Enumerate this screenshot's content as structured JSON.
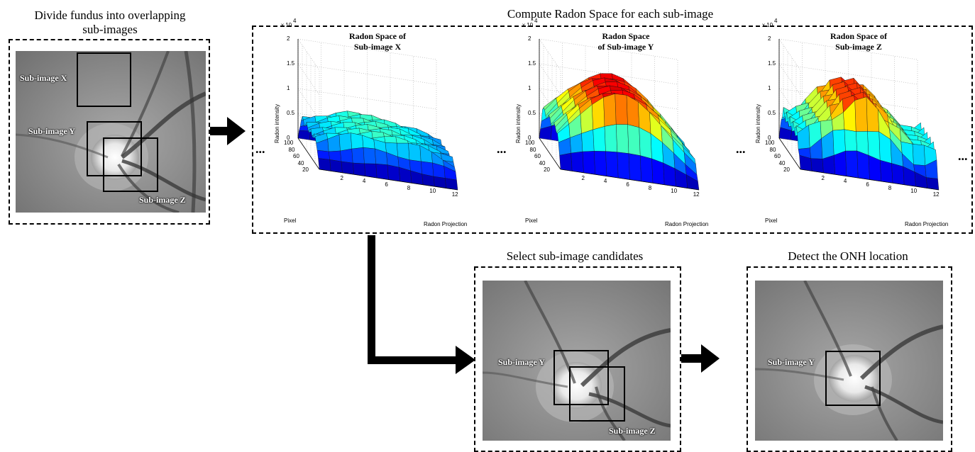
{
  "stage1": {
    "caption_line1": "Divide fundus into overlapping",
    "caption_line2": "sub-images",
    "label_x": "Sub-image X",
    "label_y": "Sub-image Y",
    "label_z": "Sub-image Z"
  },
  "stage2": {
    "caption": "Compute Radon Space for each sub-image",
    "ellipsis": "...",
    "plots": [
      {
        "title_line1": "Radon Space of",
        "title_line2": "Sub-image X"
      },
      {
        "title_line1": "Radon Space",
        "title_line2": "of Sub-image Y"
      },
      {
        "title_line1": "Radon Space of",
        "title_line2": "Sub-image Z"
      }
    ],
    "axes": {
      "scale": "x 10",
      "scale_exp": "4",
      "z_label": "Radon intensity",
      "y_label": "Pixel",
      "x_label": "Radon Projection",
      "z_ticks": [
        "0",
        "0.5",
        "1",
        "1.5",
        "2"
      ],
      "y_ticks": [
        "100",
        "80",
        "60",
        "40",
        "20"
      ],
      "x_ticks": [
        "2",
        "4",
        "6",
        "8",
        "10",
        "12"
      ]
    }
  },
  "stage3": {
    "caption": "Select sub-image candidates",
    "label_y": "Sub-image Y",
    "label_z": "Sub-image Z"
  },
  "stage4": {
    "caption": "Detect the ONH location",
    "label_y": "Sub-image Y"
  },
  "colors": {
    "line": "#000000",
    "fundus_bg": "#8a8a8a",
    "disc": "#f4f4f4"
  }
}
